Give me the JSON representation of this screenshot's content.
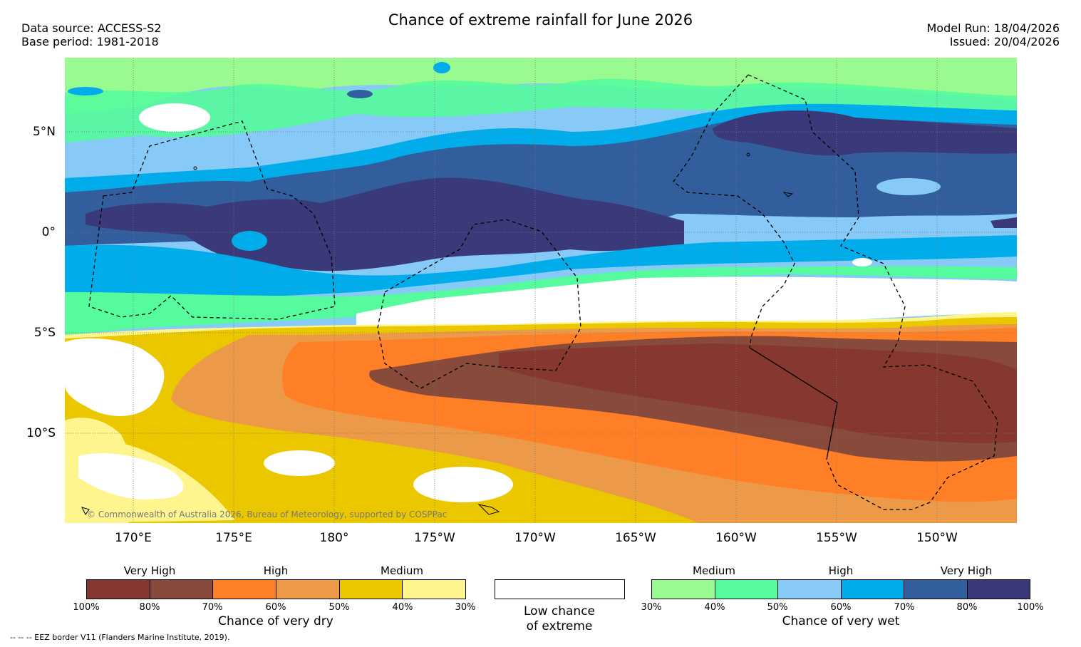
{
  "header": {
    "title": "Chance of extreme rainfall for June 2026",
    "data_source": "Data source: ACCESS-S2",
    "base_period": "Base period: 1981-2018",
    "model_run": "Model Run: 18/04/2026",
    "issued": "Issued: 20/04/2026"
  },
  "map": {
    "lat_labels": [
      "5°N",
      "0°",
      "5°S",
      "10°S"
    ],
    "lon_labels": [
      "170°E",
      "175°E",
      "180°",
      "175°W",
      "170°W",
      "165°W",
      "160°W",
      "155°W",
      "150°W"
    ],
    "copyright": "© Commonwealth of Australia 2026, Bureau of Meteorology, supported by COSPPac"
  },
  "legend_dry": {
    "categories": [
      "Very High",
      "High",
      "Medium"
    ],
    "ticks": [
      "100%",
      "80%",
      "70%",
      "60%",
      "50%",
      "40%",
      "30%"
    ],
    "colors": [
      "#863830",
      "#874a3b",
      "#ff7f27",
      "#ec9a48",
      "#ebc700",
      "#fff58f"
    ],
    "title": "Chance of very dry"
  },
  "legend_low": {
    "line1": "Low chance",
    "line2": "of extreme",
    "color": "#ffffff"
  },
  "legend_wet": {
    "categories": [
      "Medium",
      "High",
      "Very High"
    ],
    "ticks": [
      "30%",
      "40%",
      "50%",
      "60%",
      "70%",
      "80%",
      "100%"
    ],
    "colors": [
      "#98fa8f",
      "#55fb9c",
      "#87caf8",
      "#00adea",
      "#335e9e",
      "#3a3a7a"
    ],
    "title": "Chance of very wet"
  },
  "footer": {
    "eez_note": "--  --  -- EEZ border V11 (Flanders Marine Institute, 2019)."
  }
}
